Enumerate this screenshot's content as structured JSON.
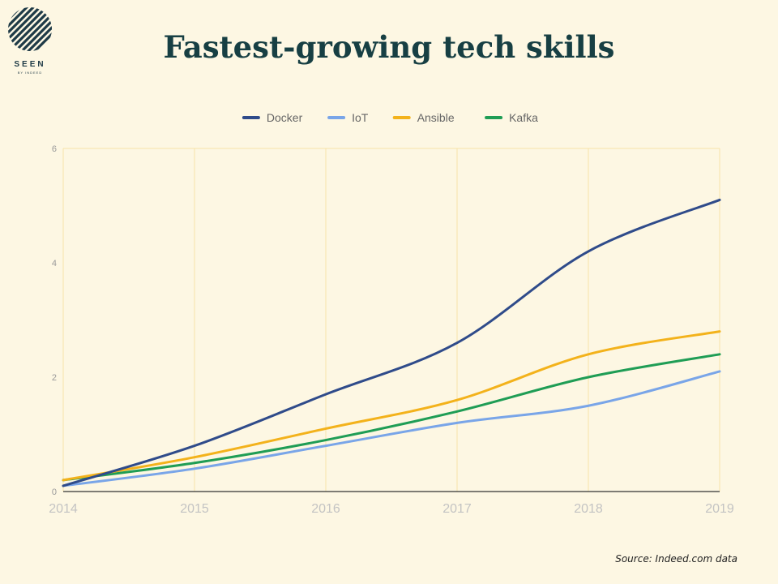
{
  "title": "Fastest-growing tech skills",
  "source": "Source: Indeed.com data",
  "logo": {
    "text": "SEEN",
    "subtext": "BY INDEED"
  },
  "chart_data": {
    "type": "line",
    "x": [
      2014,
      2015,
      2016,
      2017,
      2018,
      2019
    ],
    "x_tick_labels": [
      "2014",
      "2015",
      "2016",
      "2017",
      "2018",
      "2019"
    ],
    "y_tick_labels": [
      "0",
      "2",
      "4",
      "6"
    ],
    "y_ticks": [
      0,
      2,
      4,
      6
    ],
    "ylim": [
      0,
      6
    ],
    "xlim": [
      2014,
      2019
    ],
    "grid": "vertical",
    "legend_position": "top",
    "series": [
      {
        "name": "Docker",
        "color": "#2f4b8a",
        "values": [
          0.1,
          0.8,
          1.7,
          2.6,
          4.2,
          5.1
        ]
      },
      {
        "name": "IoT",
        "color": "#79a5e8",
        "values": [
          0.1,
          0.4,
          0.8,
          1.2,
          1.5,
          2.1
        ]
      },
      {
        "name": "Ansible",
        "color": "#f3b21b",
        "values": [
          0.2,
          0.6,
          1.1,
          1.6,
          2.4,
          2.8
        ]
      },
      {
        "name": "Kafka",
        "color": "#1f9d55",
        "values": [
          0.2,
          0.5,
          0.9,
          1.4,
          2.0,
          2.4
        ]
      }
    ]
  }
}
